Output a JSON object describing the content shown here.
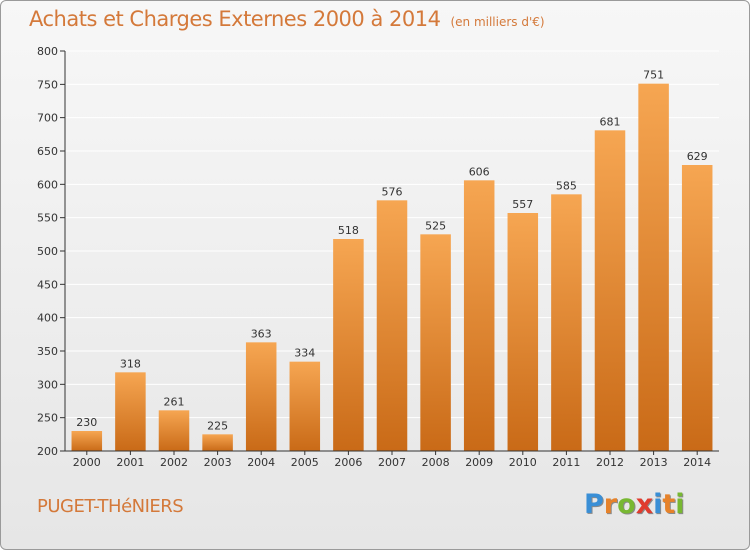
{
  "title": "Achats et Charges Externes 2000 à 2014",
  "subtitle": "(en milliers d'€)",
  "location": "PUGET-THéNIERS",
  "logo": {
    "letters": [
      "P",
      "r",
      "o",
      "x",
      "i",
      "t",
      "i"
    ],
    "colors": [
      "#3a8fd6",
      "#e6822a",
      "#78b832",
      "#e03c2e",
      "#3a8fd6",
      "#e6822a",
      "#78b832"
    ]
  },
  "colors": {
    "bar_top": "#f6a652",
    "bar_bottom": "#c96a17",
    "grid": "#ffffff",
    "axis": "#333333",
    "text": "#333333",
    "accent": "#d4793a"
  },
  "chart_data": {
    "type": "bar",
    "categories": [
      "2000",
      "2001",
      "2002",
      "2003",
      "2004",
      "2005",
      "2006",
      "2007",
      "2008",
      "2009",
      "2010",
      "2011",
      "2012",
      "2013",
      "2014"
    ],
    "values": [
      230,
      318,
      261,
      225,
      363,
      334,
      518,
      576,
      525,
      606,
      557,
      585,
      681,
      751,
      629
    ],
    "ylim": [
      200,
      800
    ],
    "yticks": [
      200,
      250,
      300,
      350,
      400,
      450,
      500,
      550,
      600,
      650,
      700,
      750,
      800
    ],
    "grid": true,
    "data_labels": true
  }
}
